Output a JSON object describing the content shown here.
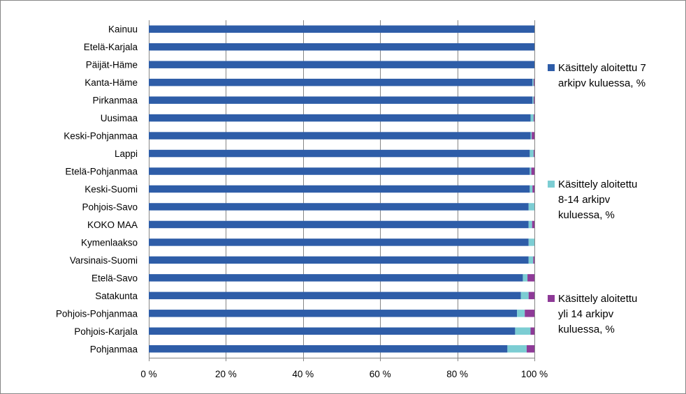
{
  "chart_data": {
    "type": "bar",
    "orientation": "horizontal",
    "stacked": "percent",
    "categories": [
      "Kainuu",
      "Etelä-Karjala",
      "Päijät-Häme",
      "Kanta-Häme",
      "Pirkanmaa",
      "Uusimaa",
      "Keski-Pohjanmaa",
      "Lappi",
      "Etelä-Pohjanmaa",
      "Keski-Suomi",
      "Pohjois-Savo",
      "KOKO MAA",
      "Kymenlaakso",
      "Varsinais-Suomi",
      "Etelä-Savo",
      "Satakunta",
      "Pohjois-Pohjanmaa",
      "Pohjois-Karjala",
      "Pohjanmaa"
    ],
    "series": [
      {
        "name": "Käsittely aloitettu 7 arkipv kuluessa, %",
        "color": "#2E5DA8",
        "values": [
          100,
          100,
          100,
          99.5,
          99.5,
          99,
          99,
          98.8,
          98.8,
          98.8,
          98.5,
          98.5,
          98.5,
          98.5,
          97,
          96.5,
          95.5,
          95,
          93
        ]
      },
      {
        "name": "Käsittely aloitettu 8-14 arkipv kuluessa, %",
        "color": "#7CCDD3",
        "values": [
          0,
          0,
          0,
          0.3,
          0.3,
          0.8,
          0.3,
          1,
          0.4,
          0.7,
          1.5,
          0.9,
          1.5,
          1.2,
          1.2,
          2,
          2,
          4,
          5
        ]
      },
      {
        "name": "Käsittely aloitettu yli 14 arkipv kuluessa, %",
        "color": "#8E3A97",
        "values": [
          0,
          0,
          0,
          0.2,
          0.2,
          0.2,
          0.7,
          0.2,
          0.8,
          0.5,
          0,
          0.6,
          0,
          0.3,
          1.8,
          1.5,
          2.5,
          1,
          2
        ]
      }
    ],
    "legend_lines": [
      [
        "Käsittely aloitettu 7",
        "arkipv kuluessa, %"
      ],
      [
        "Käsittely aloitettu",
        "8-14 arkipv",
        "kuluessa, %"
      ],
      [
        "Käsittely aloitettu",
        "yli 14 arkipv",
        "kuluessa, %"
      ]
    ],
    "x_ticks": [
      0,
      20,
      40,
      60,
      80,
      100
    ],
    "x_tick_labels": [
      "0 %",
      "20 %",
      "40 %",
      "60 %",
      "80 %",
      "100 %"
    ],
    "xlim": [
      0,
      100
    ],
    "grid": "vertical",
    "legend_position": "right"
  },
  "colors": {
    "gridline": "#868686",
    "axis": "#868686"
  }
}
